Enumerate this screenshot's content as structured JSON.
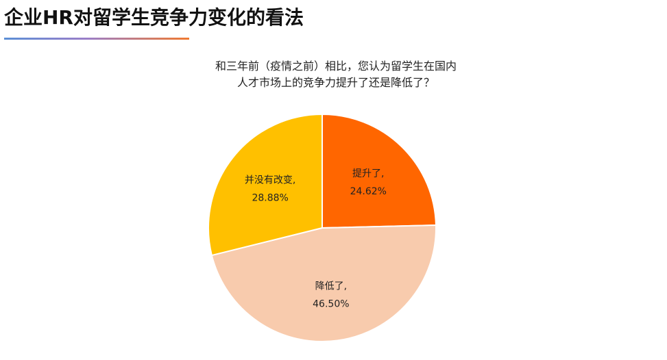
{
  "page": {
    "title": "企业HR对留学生竞争力变化的看法"
  },
  "chart_data": {
    "type": "pie",
    "title_lines": [
      "和三年前（疫情之前）相比，您认为留学生在国内",
      "人才市场上的竞争力提升了还是降低了？"
    ],
    "slices": [
      {
        "label": "提升了,",
        "value": 24.62,
        "value_label": "24.62%",
        "color": "#ff6600"
      },
      {
        "label": "降低了,",
        "value": 46.5,
        "value_label": "46.50%",
        "color": "#f8cbad"
      },
      {
        "label": "并没有改变,",
        "value": 28.88,
        "value_label": "28.88%",
        "color": "#ffc000"
      }
    ],
    "start_angle": "12 o'clock",
    "direction": "clockwise",
    "legend": "none",
    "data_labels": "inside"
  }
}
